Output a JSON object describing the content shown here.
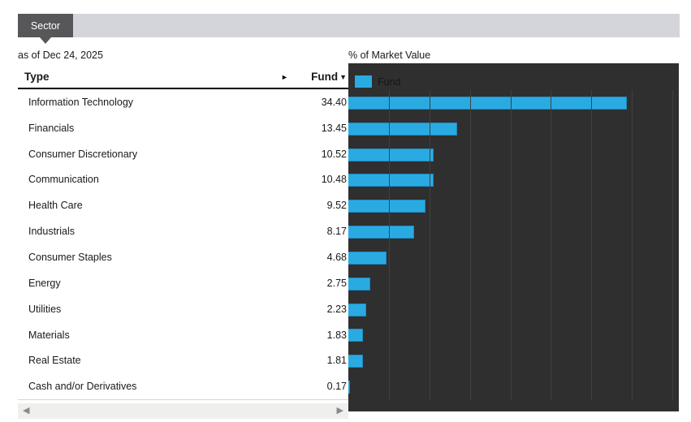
{
  "tab": {
    "label": "Sector"
  },
  "as_of": "as of Dec 24, 2025",
  "table": {
    "type_header": "Type",
    "expand_icon": "►",
    "fund_header": "Fund",
    "sort_icon": "▼",
    "rows": [
      {
        "label": "Information Technology",
        "value": "34.40"
      },
      {
        "label": "Financials",
        "value": "13.45"
      },
      {
        "label": "Consumer Discretionary",
        "value": "10.52"
      },
      {
        "label": "Communication",
        "value": "10.48"
      },
      {
        "label": "Health Care",
        "value": "9.52"
      },
      {
        "label": "Industrials",
        "value": "8.17"
      },
      {
        "label": "Consumer Staples",
        "value": "4.68"
      },
      {
        "label": "Energy",
        "value": "2.75"
      },
      {
        "label": "Utilities",
        "value": "2.23"
      },
      {
        "label": "Materials",
        "value": "1.83"
      },
      {
        "label": "Real Estate",
        "value": "1.81"
      },
      {
        "label": "Cash and/or Derivatives",
        "value": "0.17"
      }
    ]
  },
  "scrollbar": {
    "left_arrow": "◀",
    "right_arrow": "▶"
  },
  "chart_data": {
    "type": "bar",
    "orientation": "horizontal",
    "title": "% of Market Value",
    "categories": [
      "Information Technology",
      "Financials",
      "Consumer Discretionary",
      "Communication",
      "Health Care",
      "Industrials",
      "Consumer Staples",
      "Energy",
      "Utilities",
      "Materials",
      "Real Estate",
      "Cash and/or Derivatives"
    ],
    "values": [
      34.4,
      13.45,
      10.52,
      10.48,
      9.52,
      8.17,
      4.68,
      2.75,
      2.23,
      1.83,
      1.81,
      0.17
    ],
    "series_name": "Fund",
    "xlim": [
      0,
      40.8
    ],
    "gridline_interval": 5,
    "grid": true,
    "legend_position": "top-left",
    "legend": [
      {
        "label": "Fund",
        "color": "#29abe2"
      }
    ],
    "bar_color": "#29abe2",
    "background_color": "#2f2f2f"
  },
  "colors": {
    "tab_active_bg": "#57575a",
    "tab_bar_bg": "#d4d4db",
    "chart_bg": "#2f2f2f",
    "gridline": "#404040",
    "bar": "#29abe2",
    "text": "#1a1a1a"
  }
}
